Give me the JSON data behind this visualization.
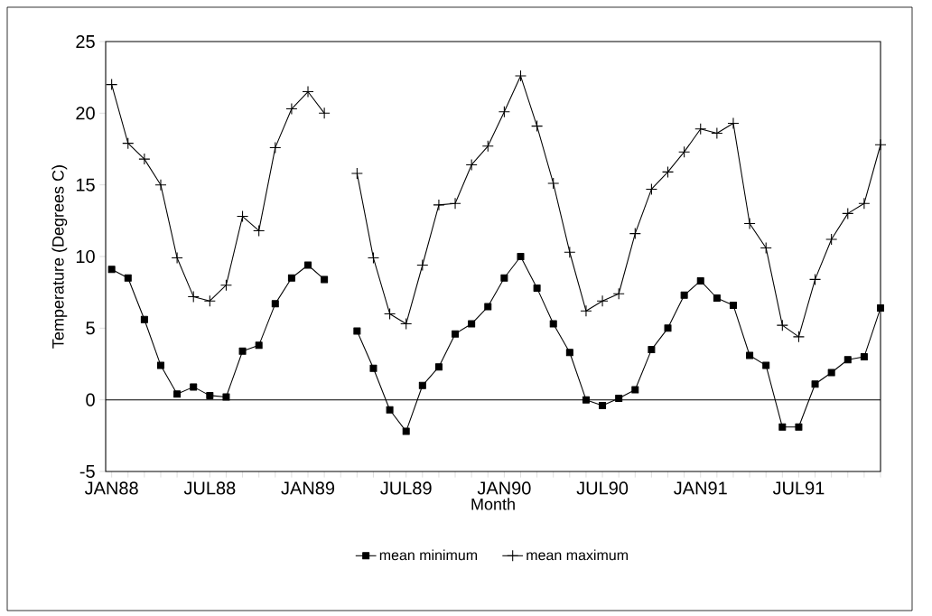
{
  "chart_data": {
    "type": "line",
    "xlabel": "Month",
    "ylabel": "Temperature (Degrees C)",
    "x": [
      "1988-01",
      "1988-02",
      "1988-03",
      "1988-04",
      "1988-05",
      "1988-06",
      "1988-07",
      "1988-08",
      "1988-09",
      "1988-10",
      "1988-11",
      "1988-12",
      "1989-01",
      "1989-02",
      "1989-03",
      "1989-04",
      "1989-05",
      "1989-06",
      "1989-07",
      "1989-08",
      "1989-09",
      "1989-10",
      "1989-11",
      "1989-12",
      "1990-01",
      "1990-02",
      "1990-03",
      "1990-04",
      "1990-05",
      "1990-06",
      "1990-07",
      "1990-08",
      "1990-09",
      "1990-10",
      "1990-11",
      "1990-12",
      "1991-01",
      "1991-02",
      "1991-03",
      "1991-04",
      "1991-05",
      "1991-06",
      "1991-07",
      "1991-08",
      "1991-09",
      "1991-10",
      "1991-11",
      "1991-12"
    ],
    "series": [
      {
        "name": "mean minimum",
        "color": "#000000",
        "marker": "square",
        "values": [
          9.1,
          8.5,
          5.6,
          2.4,
          0.4,
          0.9,
          0.3,
          0.2,
          3.4,
          3.8,
          6.7,
          8.5,
          9.4,
          8.4,
          null,
          4.8,
          2.2,
          -0.7,
          -2.2,
          1.0,
          2.3,
          4.6,
          5.3,
          6.5,
          8.5,
          10.0,
          7.8,
          5.3,
          3.3,
          0.0,
          -0.4,
          0.1,
          0.7,
          3.5,
          5.0,
          7.3,
          8.3,
          7.1,
          6.6,
          3.1,
          2.4,
          -1.9,
          -1.9,
          1.1,
          1.9,
          2.8,
          3.0,
          6.4
        ]
      },
      {
        "name": "mean maximum",
        "color": "#000000",
        "marker": "cross",
        "values": [
          22.0,
          17.9,
          16.8,
          15.0,
          9.9,
          7.2,
          6.9,
          8.0,
          12.8,
          11.8,
          17.6,
          20.3,
          21.5,
          20.0,
          null,
          15.8,
          9.9,
          6.0,
          5.3,
          9.4,
          13.6,
          13.7,
          16.4,
          17.7,
          20.1,
          22.6,
          19.1,
          15.1,
          10.3,
          6.2,
          6.9,
          7.4,
          11.6,
          14.7,
          15.9,
          17.3,
          18.9,
          18.6,
          19.3,
          12.3,
          10.6,
          5.2,
          4.4,
          8.4,
          11.2,
          13.0,
          13.7,
          17.8
        ]
      }
    ],
    "xlim": [
      "1987-12-20",
      "1991-12"
    ],
    "xticks": [
      {
        "value": "1988-01",
        "label": "JAN88"
      },
      {
        "value": "1988-02",
        "label": null
      },
      {
        "value": "1988-03",
        "label": null
      },
      {
        "value": "1988-04",
        "label": null
      },
      {
        "value": "1988-05",
        "label": null
      },
      {
        "value": "1988-06",
        "label": null
      },
      {
        "value": "1988-07",
        "label": "JUL88"
      },
      {
        "value": "1988-08",
        "label": null
      },
      {
        "value": "1988-09",
        "label": null
      },
      {
        "value": "1988-10",
        "label": null
      },
      {
        "value": "1988-11",
        "label": null
      },
      {
        "value": "1988-12",
        "label": null
      },
      {
        "value": "1989-01",
        "label": "JAN89"
      },
      {
        "value": "1989-02",
        "label": null
      },
      {
        "value": "1989-03",
        "label": null
      },
      {
        "value": "1989-04",
        "label": null
      },
      {
        "value": "1989-05",
        "label": null
      },
      {
        "value": "1989-06",
        "label": null
      },
      {
        "value": "1989-07",
        "label": "JUL89"
      },
      {
        "value": "1989-08",
        "label": null
      },
      {
        "value": "1989-09",
        "label": null
      },
      {
        "value": "1989-10",
        "label": null
      },
      {
        "value": "1989-11",
        "label": null
      },
      {
        "value": "1989-12",
        "label": null
      },
      {
        "value": "1990-01",
        "label": "JAN90"
      },
      {
        "value": "1990-02",
        "label": null
      },
      {
        "value": "1990-03",
        "label": null
      },
      {
        "value": "1990-04",
        "label": null
      },
      {
        "value": "1990-05",
        "label": null
      },
      {
        "value": "1990-06",
        "label": null
      },
      {
        "value": "1990-07",
        "label": "JUL90"
      },
      {
        "value": "1990-08",
        "label": null
      },
      {
        "value": "1990-09",
        "label": null
      },
      {
        "value": "1990-10",
        "label": null
      },
      {
        "value": "1990-11",
        "label": null
      },
      {
        "value": "1990-12",
        "label": null
      },
      {
        "value": "1991-01",
        "label": "JAN91"
      },
      {
        "value": "1991-02",
        "label": null
      },
      {
        "value": "1991-03",
        "label": null
      },
      {
        "value": "1991-04",
        "label": null
      },
      {
        "value": "1991-05",
        "label": null
      },
      {
        "value": "1991-06",
        "label": null
      },
      {
        "value": "1991-07",
        "label": "JUL91"
      },
      {
        "value": "1991-08",
        "label": null
      },
      {
        "value": "1991-09",
        "label": null
      },
      {
        "value": "1991-10",
        "label": null
      },
      {
        "value": "1991-11",
        "label": null
      },
      {
        "value": "1991-12",
        "label": null
      }
    ],
    "ylim": [
      -5,
      25
    ],
    "yticks": [
      -5,
      0,
      5,
      10,
      15,
      20,
      25
    ],
    "ref_lines": [
      {
        "axis": "y",
        "value": 0,
        "color": "#000000"
      }
    ],
    "grid": false,
    "legend": "bottom"
  }
}
